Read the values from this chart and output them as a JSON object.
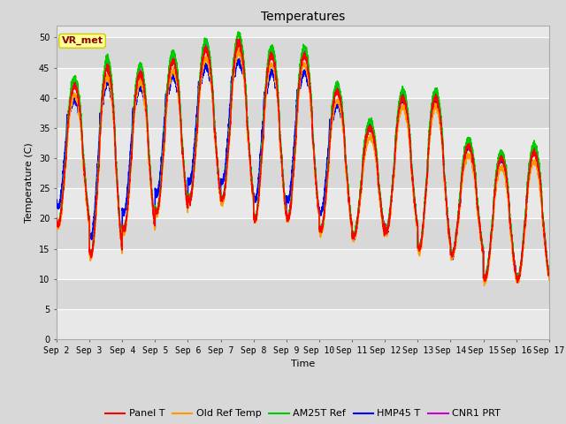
{
  "title": "Temperatures",
  "xlabel": "Time",
  "ylabel": "Temperature (C)",
  "ylim": [
    0,
    52
  ],
  "yticks": [
    0,
    5,
    10,
    15,
    20,
    25,
    30,
    35,
    40,
    45,
    50
  ],
  "x_tick_labels": [
    "Sep 2",
    "Sep 3",
    "Sep 4",
    "Sep 5",
    "Sep 6",
    "Sep 7",
    "Sep 8",
    "Sep 9",
    "Sep 10",
    "Sep 11",
    "Sep 12",
    "Sep 13",
    "Sep 14",
    "Sep 15",
    "Sep 16",
    "Sep 17"
  ],
  "annotation_text": "VR_met",
  "annotation_fg": "#8B0000",
  "annotation_bg": "#ffff99",
  "annotation_edge": "#cccc00",
  "background_color": "#d8d8d8",
  "plot_bg_light": "#e8e8e8",
  "plot_bg_dark": "#d8d8d8",
  "grid_color": "#ffffff",
  "line_colors": {
    "Panel T": "#ff0000",
    "Old Ref Temp": "#ff9900",
    "AM25T Ref": "#00cc00",
    "HMP45 T": "#0000ff",
    "CNR1 PRT": "#cc00cc"
  },
  "line_widths": {
    "Panel T": 1.0,
    "Old Ref Temp": 1.0,
    "AM25T Ref": 1.2,
    "HMP45 T": 1.2,
    "CNR1 PRT": 1.0
  },
  "title_fontsize": 10,
  "axis_label_fontsize": 8,
  "tick_fontsize": 7,
  "legend_fontsize": 8
}
